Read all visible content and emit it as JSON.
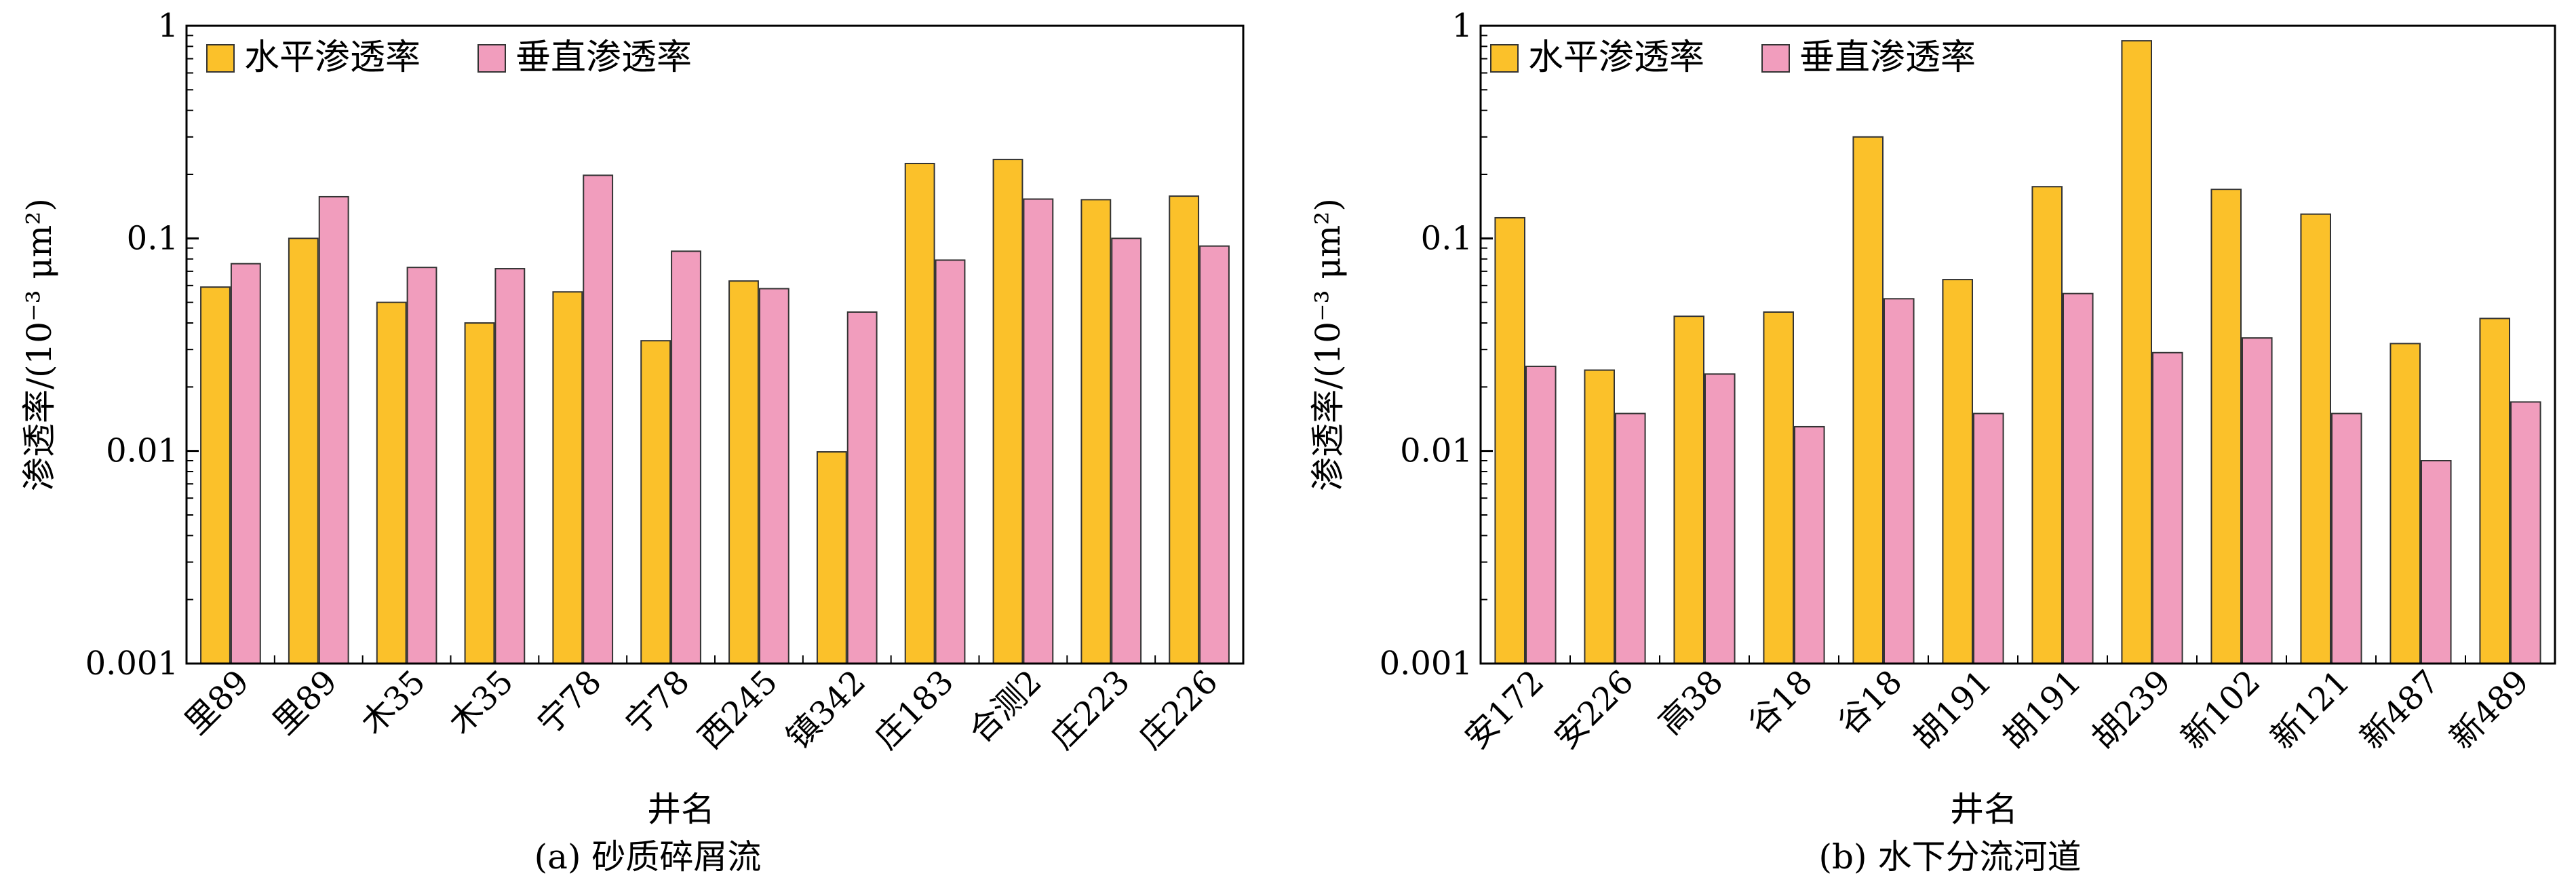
{
  "colors": {
    "horizontal": "#FBC12A",
    "vertical": "#F19DBD"
  },
  "chart_data": [
    {
      "type": "bar",
      "id": "a",
      "caption": "(a)  砂质碎屑流",
      "xlabel": "井名",
      "ylabel": "渗透率/(10⁻³ μm²)",
      "yscale": "log",
      "ylim": [
        0.001,
        1
      ],
      "yticks": [
        "0.001",
        "0.01",
        "0.1",
        "1"
      ],
      "legend": "top-left",
      "categories": [
        "里89",
        "里89",
        "木35",
        "木35",
        "宁78",
        "宁78",
        "西245",
        "镇342",
        "庄183",
        "合测2",
        "庄223",
        "庄226"
      ],
      "series": [
        {
          "name": "水平渗透率",
          "values": [
            0.059,
            0.1,
            0.05,
            0.04,
            0.056,
            0.033,
            0.063,
            0.0099,
            0.225,
            0.235,
            0.152,
            0.158
          ]
        },
        {
          "name": "垂直渗透率",
          "values": [
            0.076,
            0.157,
            0.073,
            0.072,
            0.198,
            0.087,
            0.058,
            0.045,
            0.079,
            0.153,
            0.1,
            0.092
          ]
        }
      ]
    },
    {
      "type": "bar",
      "id": "b",
      "caption": "(b)  水下分流河道",
      "xlabel": "井名",
      "ylabel": "渗透率/(10⁻³ μm²)",
      "yscale": "log",
      "ylim": [
        0.001,
        1
      ],
      "yticks": [
        "0.001",
        "0.01",
        "0.1",
        "1"
      ],
      "legend": "top-left",
      "categories": [
        "安172",
        "安226",
        "高38",
        "谷18",
        "谷18",
        "胡191",
        "胡191",
        "胡239",
        "新102",
        "新121",
        "新487",
        "新489"
      ],
      "series": [
        {
          "name": "水平渗透率",
          "values": [
            0.125,
            0.024,
            0.043,
            0.045,
            0.3,
            0.064,
            0.175,
            0.85,
            0.17,
            0.13,
            0.032,
            0.042
          ]
        },
        {
          "name": "垂直渗透率",
          "values": [
            0.025,
            0.015,
            0.023,
            0.013,
            0.052,
            0.015,
            0.055,
            0.029,
            0.034,
            0.015,
            0.009,
            0.017
          ]
        }
      ]
    }
  ]
}
